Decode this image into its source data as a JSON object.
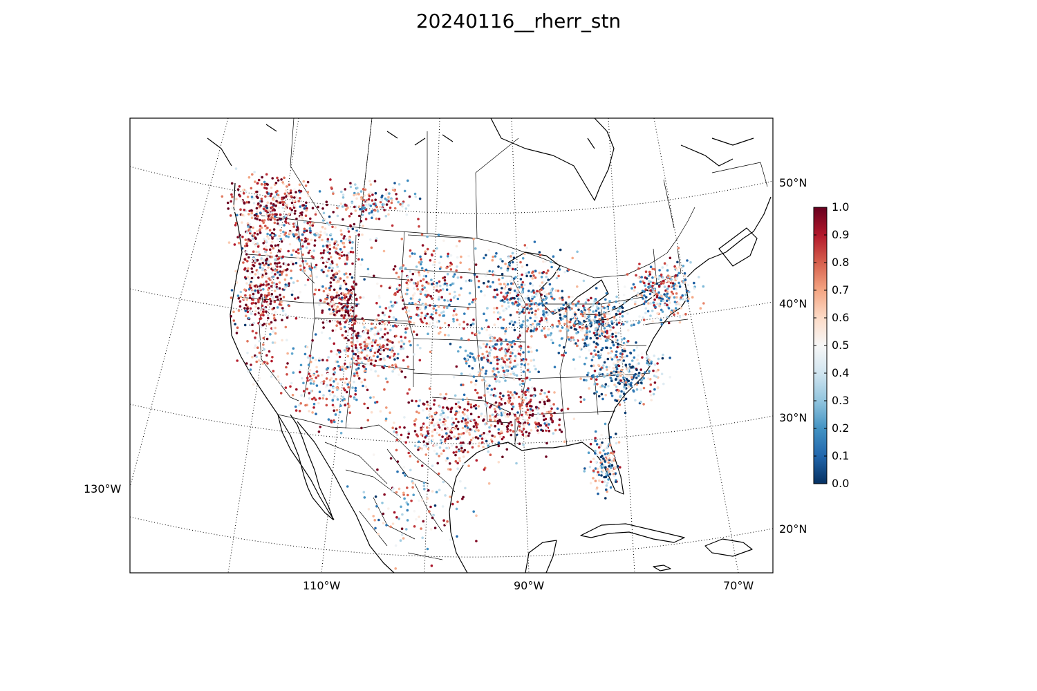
{
  "title": "20240116__rherr_stn",
  "map": {
    "meridian_labels": [
      "110°W",
      "90°W",
      "70°W"
    ],
    "west_label": "130°W",
    "parallel_labels": [
      "50°N",
      "40°N",
      "30°N",
      "20°N"
    ]
  },
  "colorbar": {
    "colormap": "RdBu_r",
    "range": [
      0.0,
      1.0
    ],
    "tick_labels": [
      "1.0",
      "0.9",
      "0.8",
      "0.7",
      "0.6",
      "0.5",
      "0.4",
      "0.3",
      "0.2",
      "0.1",
      "0.0"
    ],
    "colors": [
      "#053061",
      "#2166ac",
      "#4393c3",
      "#92c5de",
      "#d1e5f0",
      "#f7f7f7",
      "#fddbc7",
      "#f4a582",
      "#d6604d",
      "#b2182b",
      "#67001f"
    ]
  }
}
